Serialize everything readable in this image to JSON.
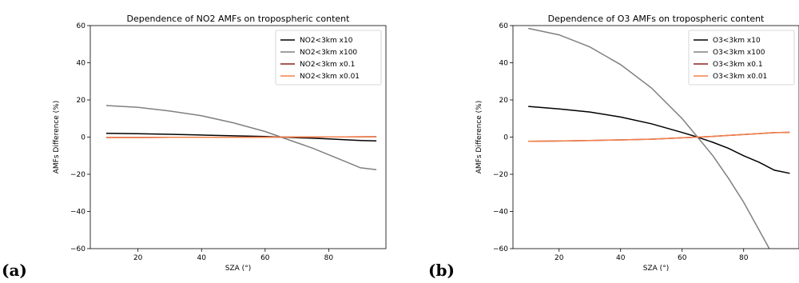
{
  "panel_labels": [
    "(a)",
    "(b)"
  ],
  "chart_data": [
    {
      "type": "line",
      "title": "Dependence of NO2 AMFs on tropospheric content",
      "xlabel": "SZA (°)",
      "ylabel": "AMFs Difference (%)",
      "xlim": [
        5,
        98
      ],
      "ylim": [
        -60,
        60
      ],
      "xticks": [
        20,
        40,
        60,
        80
      ],
      "yticks": [
        -60,
        -40,
        -20,
        0,
        20,
        40,
        60
      ],
      "grid": false,
      "legend_position": "top-right",
      "x": [
        10,
        20,
        30,
        40,
        50,
        60,
        65,
        70,
        75,
        80,
        85,
        90,
        95
      ],
      "series": [
        {
          "name": "NO2<3km x10",
          "color": "#000000",
          "values": [
            2.0,
            1.8,
            1.5,
            1.1,
            0.7,
            0.3,
            0.0,
            -0.3,
            -0.6,
            -1.0,
            -1.4,
            -1.8,
            -2.0
          ]
        },
        {
          "name": "NO2<3km x100",
          "color": "#808080",
          "values": [
            17.0,
            16.0,
            14.0,
            11.5,
            7.7,
            3.0,
            0.0,
            -3.0,
            -6.0,
            -9.5,
            -13.0,
            -16.5,
            -17.5
          ]
        },
        {
          "name": "NO2<3km x0.1",
          "color": "#8b2020",
          "values": [
            -0.2,
            -0.2,
            -0.15,
            -0.1,
            -0.08,
            -0.03,
            0.0,
            0.03,
            0.06,
            0.1,
            0.14,
            0.18,
            0.2
          ]
        },
        {
          "name": "NO2<3km x0.01",
          "color": "#f4804a",
          "values": [
            -0.2,
            -0.2,
            -0.15,
            -0.1,
            -0.08,
            -0.03,
            0.0,
            0.03,
            0.06,
            0.1,
            0.14,
            0.18,
            0.2
          ]
        }
      ]
    },
    {
      "type": "line",
      "title": "Dependence of O3 AMFs on tropospheric content",
      "xlabel": "SZA (°)",
      "ylabel": "AMFs Difference (%)",
      "xlim": [
        5,
        98
      ],
      "ylim": [
        -60,
        60
      ],
      "xticks": [
        20,
        40,
        60,
        80
      ],
      "yticks": [
        -60,
        -40,
        -20,
        0,
        20,
        40,
        60
      ],
      "grid": false,
      "legend_position": "top-right",
      "x": [
        10,
        20,
        30,
        40,
        50,
        60,
        65,
        70,
        75,
        80,
        85,
        90,
        95
      ],
      "series": [
        {
          "name": "O3<3km x10",
          "color": "#000000",
          "values": [
            16.5,
            15.2,
            13.5,
            10.8,
            7.2,
            2.5,
            0.0,
            -2.8,
            -6.0,
            -10.0,
            -13.5,
            -17.8,
            -19.5
          ]
        },
        {
          "name": "O3<3km x100",
          "color": "#808080",
          "values": [
            58.5,
            55.0,
            48.5,
            39.0,
            26.5,
            10.0,
            0.0,
            -10.0,
            -22.0,
            -35.0,
            -50.0,
            -65.0,
            -75.0
          ]
        },
        {
          "name": "O3<3km x0.1",
          "color": "#8b2020",
          "values": [
            -2.3,
            -2.1,
            -1.8,
            -1.5,
            -1.1,
            -0.4,
            0.0,
            0.4,
            0.9,
            1.4,
            1.9,
            2.4,
            2.6
          ]
        },
        {
          "name": "O3<3km x0.01",
          "color": "#f4804a",
          "values": [
            -2.3,
            -2.1,
            -1.8,
            -1.5,
            -1.1,
            -0.4,
            0.0,
            0.4,
            0.9,
            1.4,
            1.9,
            2.4,
            2.6
          ]
        }
      ]
    }
  ]
}
